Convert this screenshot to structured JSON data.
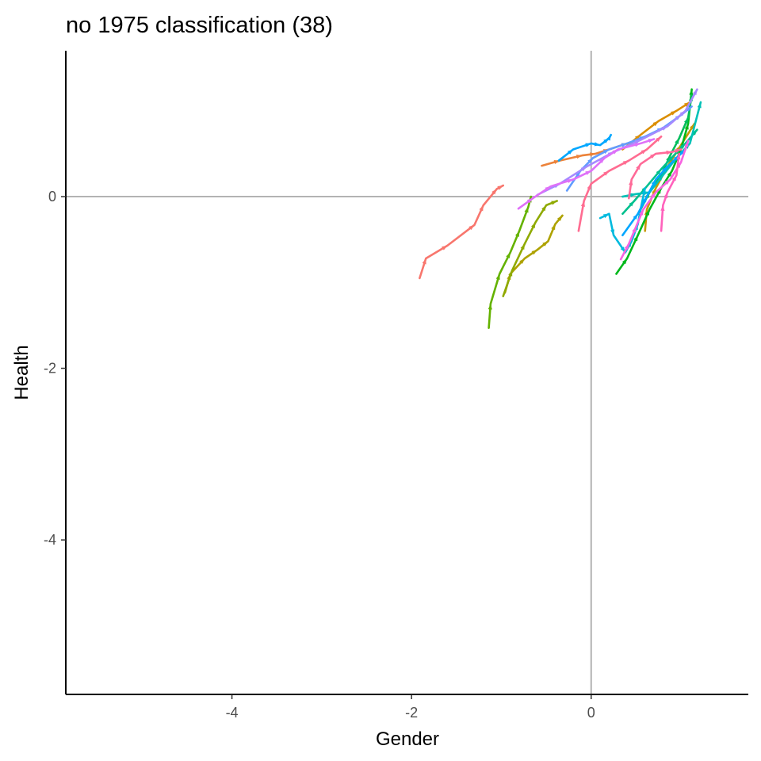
{
  "chart_data": {
    "type": "line",
    "title": "no 1975 classification (38)",
    "xlabel": "Gender",
    "ylabel": "Health",
    "xlim": [
      -5.85,
      1.75
    ],
    "ylim": [
      -5.8,
      1.7
    ],
    "xticks": [
      -4,
      -2,
      0
    ],
    "xtick_labels": [
      "-4",
      "-2",
      "0"
    ],
    "yticks": [
      -4,
      -2,
      0
    ],
    "ytick_labels": [
      "-4",
      "-2",
      "0"
    ],
    "reference_lines": {
      "x": 0,
      "y": 0,
      "color": "#b3b3b3"
    },
    "grid": false,
    "legend": "none",
    "series": [
      {
        "color": "#F8766D",
        "points": [
          [
            -1.91,
            -0.95
          ],
          [
            -1.84,
            -0.72
          ],
          [
            -1.6,
            -0.57
          ],
          [
            -1.3,
            -0.33
          ],
          [
            -1.2,
            -0.1
          ],
          [
            -1.05,
            0.09
          ],
          [
            -0.98,
            0.13
          ]
        ]
      },
      {
        "color": "#EC8239",
        "points": [
          [
            -0.55,
            0.36
          ],
          [
            -0.35,
            0.42
          ],
          [
            -0.1,
            0.48
          ],
          [
            0.05,
            0.5
          ],
          [
            0.2,
            0.55
          ],
          [
            0.4,
            0.62
          ]
        ]
      },
      {
        "color": "#DB8E00",
        "points": [
          [
            0.35,
            0.55
          ],
          [
            0.55,
            0.72
          ],
          [
            0.75,
            0.88
          ],
          [
            0.95,
            1.0
          ],
          [
            1.1,
            1.1
          ]
        ]
      },
      {
        "color": "#C79800",
        "points": [
          [
            0.6,
            -0.4
          ],
          [
            0.62,
            -0.15
          ],
          [
            0.72,
            0.1
          ],
          [
            0.85,
            0.35
          ],
          [
            1.0,
            0.6
          ],
          [
            1.15,
            0.85
          ]
        ]
      },
      {
        "color": "#AEA200",
        "points": [
          [
            -0.96,
            -1.12
          ],
          [
            -0.9,
            -0.9
          ],
          [
            -0.74,
            -0.72
          ],
          [
            -0.6,
            -0.62
          ],
          [
            -0.48,
            -0.52
          ],
          [
            -0.4,
            -0.32
          ],
          [
            -0.32,
            -0.22
          ]
        ]
      },
      {
        "color": "#8FAA00",
        "points": [
          [
            -0.98,
            -1.16
          ],
          [
            -0.88,
            -0.86
          ],
          [
            -0.74,
            -0.55
          ],
          [
            -0.62,
            -0.3
          ],
          [
            -0.5,
            -0.1
          ],
          [
            -0.38,
            -0.05
          ]
        ]
      },
      {
        "color": "#64B200",
        "points": [
          [
            -1.14,
            -1.53
          ],
          [
            -1.12,
            -1.25
          ],
          [
            -1.02,
            -0.9
          ],
          [
            -0.9,
            -0.65
          ],
          [
            -0.8,
            -0.4
          ],
          [
            -0.7,
            -0.12
          ],
          [
            -0.67,
            0.0
          ]
        ]
      },
      {
        "color": "#00B81B",
        "points": [
          [
            0.28,
            -0.9
          ],
          [
            0.4,
            -0.72
          ],
          [
            0.52,
            -0.45
          ],
          [
            0.65,
            -0.15
          ],
          [
            0.78,
            0.1
          ],
          [
            0.9,
            0.3
          ],
          [
            1.0,
            0.55
          ],
          [
            1.08,
            0.85
          ],
          [
            1.12,
            1.25
          ]
        ]
      },
      {
        "color": "#00BD5C",
        "points": [
          [
            0.55,
            -0.15
          ],
          [
            0.65,
            0.05
          ],
          [
            0.78,
            0.25
          ],
          [
            0.88,
            0.48
          ],
          [
            0.98,
            0.68
          ],
          [
            1.08,
            0.92
          ],
          [
            1.12,
            1.18
          ]
        ]
      },
      {
        "color": "#00C08E",
        "points": [
          [
            0.35,
            -0.2
          ],
          [
            0.48,
            -0.05
          ],
          [
            0.62,
            0.12
          ],
          [
            0.78,
            0.32
          ],
          [
            0.92,
            0.48
          ],
          [
            1.05,
            0.62
          ],
          [
            1.18,
            0.78
          ]
        ]
      },
      {
        "color": "#00C1B7",
        "points": [
          [
            0.35,
            0.0
          ],
          [
            0.5,
            0.03
          ],
          [
            0.65,
            0.05
          ],
          [
            0.8,
            0.25
          ],
          [
            0.95,
            0.45
          ],
          [
            1.1,
            0.62
          ],
          [
            1.22,
            1.1
          ]
        ]
      },
      {
        "color": "#00BADE",
        "points": [
          [
            0.1,
            -0.25
          ],
          [
            0.2,
            -0.2
          ],
          [
            0.25,
            -0.45
          ],
          [
            0.38,
            -0.65
          ],
          [
            0.45,
            -0.52
          ],
          [
            0.52,
            -0.32
          ],
          [
            0.55,
            -0.15
          ],
          [
            0.6,
            0.1
          ]
        ]
      },
      {
        "color": "#00A6FF",
        "points": [
          [
            0.35,
            -0.45
          ],
          [
            0.52,
            -0.2
          ],
          [
            0.62,
            0.0
          ],
          [
            0.72,
            0.2
          ],
          [
            0.85,
            0.35
          ],
          [
            0.98,
            0.48
          ],
          [
            1.05,
            0.55
          ]
        ]
      },
      {
        "color": "#00A7FF",
        "points": [
          [
            -0.36,
            0.42
          ],
          [
            -0.2,
            0.55
          ],
          [
            0.0,
            0.62
          ],
          [
            0.1,
            0.6
          ],
          [
            0.2,
            0.68
          ],
          [
            0.22,
            0.72
          ]
        ]
      },
      {
        "color": "#619CFF",
        "points": [
          [
            -0.27,
            0.07
          ],
          [
            -0.12,
            0.3
          ],
          [
            0.02,
            0.45
          ],
          [
            0.2,
            0.55
          ],
          [
            0.4,
            0.62
          ],
          [
            0.6,
            0.7
          ],
          [
            0.8,
            0.8
          ],
          [
            1.0,
            0.95
          ],
          [
            1.12,
            1.05
          ]
        ]
      },
      {
        "color": "#A58AFF",
        "points": [
          [
            -0.6,
            0.02
          ],
          [
            -0.35,
            0.15
          ],
          [
            -0.05,
            0.35
          ],
          [
            0.25,
            0.52
          ],
          [
            0.55,
            0.66
          ],
          [
            0.85,
            0.82
          ],
          [
            1.05,
            1.0
          ],
          [
            1.18,
            1.25
          ]
        ]
      },
      {
        "color": "#DF70F8",
        "points": [
          [
            -0.81,
            -0.14
          ],
          [
            -0.65,
            -0.02
          ],
          [
            -0.45,
            0.12
          ],
          [
            -0.2,
            0.2
          ],
          [
            0.0,
            0.3
          ],
          [
            0.15,
            0.45
          ],
          [
            0.3,
            0.55
          ],
          [
            0.55,
            0.62
          ],
          [
            0.7,
            0.67
          ]
        ]
      },
      {
        "color": "#F763E0",
        "points": [
          [
            0.33,
            -0.73
          ],
          [
            0.42,
            -0.55
          ],
          [
            0.5,
            -0.35
          ],
          [
            0.58,
            -0.15
          ],
          [
            0.72,
            0.05
          ],
          [
            0.88,
            0.2
          ],
          [
            1.0,
            0.4
          ],
          [
            1.08,
            0.65
          ]
        ]
      },
      {
        "color": "#FF62BC",
        "points": [
          [
            0.78,
            -0.4
          ],
          [
            0.8,
            -0.1
          ],
          [
            0.85,
            0.05
          ],
          [
            0.95,
            0.25
          ],
          [
            0.98,
            0.5
          ]
        ]
      },
      {
        "color": "#FF6C91",
        "points": [
          [
            -0.14,
            -0.4
          ],
          [
            -0.08,
            -0.05
          ],
          [
            0.0,
            0.15
          ],
          [
            0.2,
            0.3
          ],
          [
            0.42,
            0.42
          ],
          [
            0.62,
            0.55
          ],
          [
            0.78,
            0.7
          ]
        ]
      },
      {
        "color": "#FF6A98",
        "points": [
          [
            0.42,
            -0.02
          ],
          [
            0.45,
            0.2
          ],
          [
            0.55,
            0.38
          ],
          [
            0.72,
            0.5
          ],
          [
            0.9,
            0.52
          ],
          [
            1.0,
            0.55
          ]
        ]
      }
    ]
  }
}
